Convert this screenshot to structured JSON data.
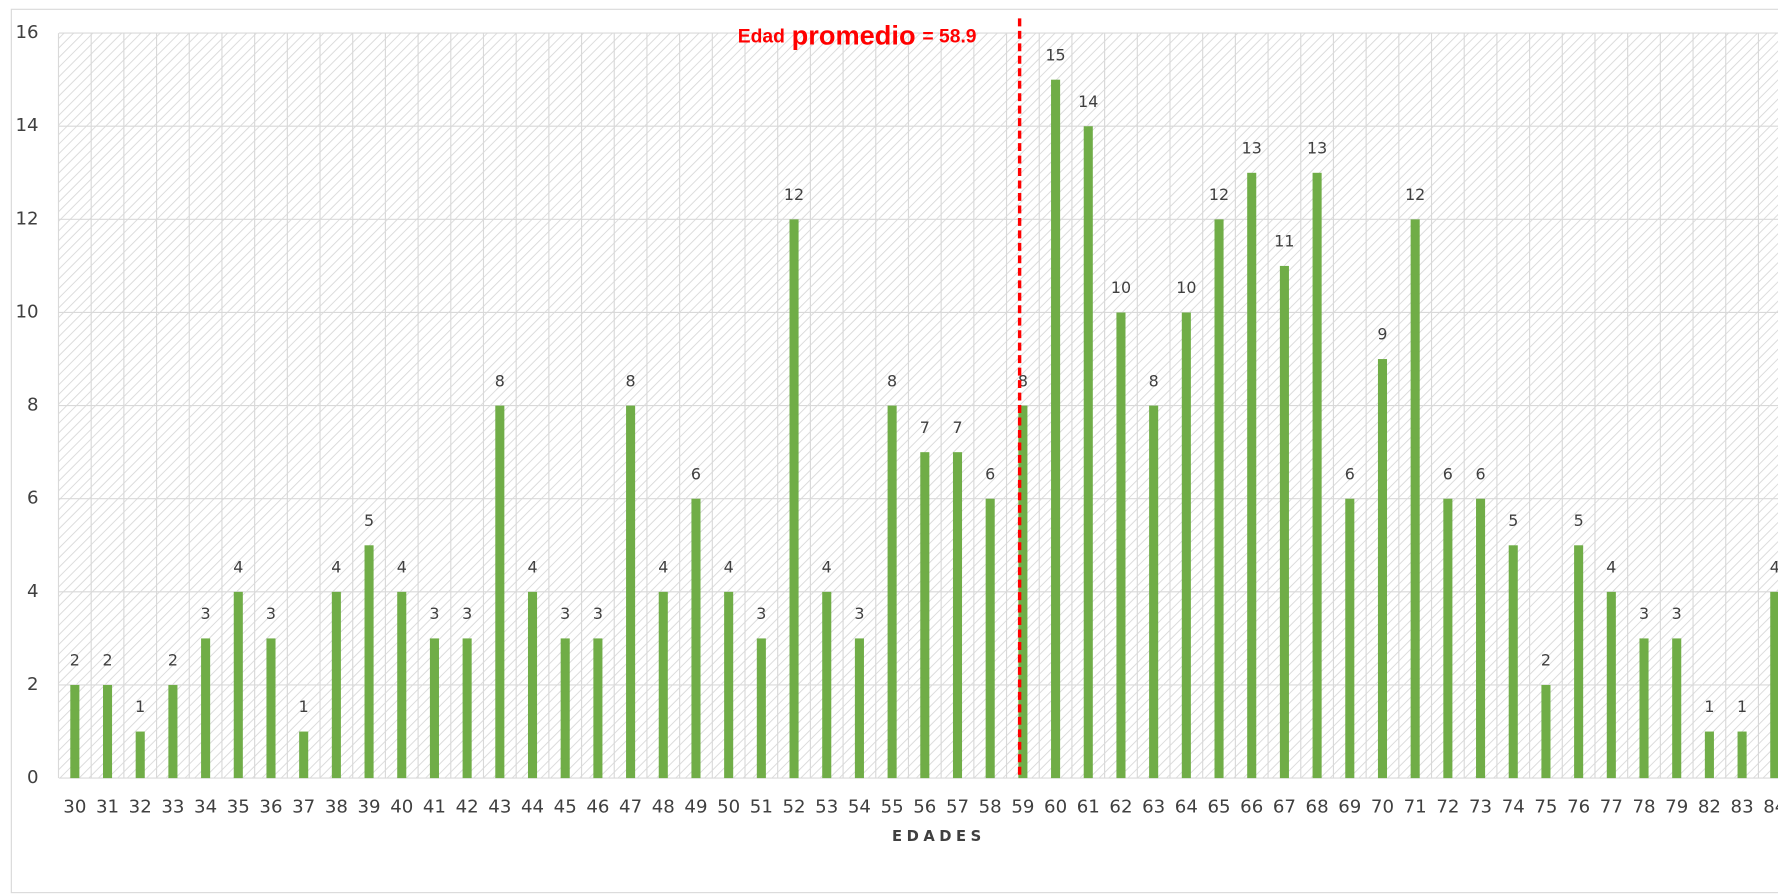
{
  "chart_data": {
    "type": "bar",
    "x_label": "EDADES",
    "categories": [
      "30",
      "31",
      "32",
      "33",
      "34",
      "35",
      "36",
      "37",
      "38",
      "39",
      "40",
      "41",
      "42",
      "43",
      "44",
      "45",
      "46",
      "47",
      "48",
      "49",
      "50",
      "51",
      "52",
      "53",
      "54",
      "55",
      "56",
      "57",
      "58",
      "59",
      "60",
      "61",
      "62",
      "63",
      "64",
      "65",
      "66",
      "67",
      "68",
      "69",
      "70",
      "71",
      "72",
      "73",
      "74",
      "75",
      "76",
      "77",
      "78",
      "79",
      "82",
      "83",
      "84"
    ],
    "values": [
      2,
      2,
      1,
      2,
      3,
      4,
      3,
      1,
      4,
      5,
      4,
      3,
      3,
      8,
      4,
      3,
      3,
      8,
      4,
      6,
      4,
      3,
      12,
      4,
      3,
      8,
      7,
      7,
      6,
      8,
      15,
      14,
      10,
      8,
      10,
      12,
      13,
      11,
      13,
      6,
      9,
      12,
      6,
      6,
      5,
      2,
      5,
      4,
      3,
      3,
      1,
      1,
      4
    ],
    "color": "#70ad47",
    "ylim": [
      0,
      16
    ],
    "yticks": [
      0,
      2,
      4,
      6,
      8,
      10,
      12,
      14,
      16
    ],
    "grid": true,
    "mean_line": {
      "value": 58.9,
      "color": "#ff0000",
      "label_prefix": "Edad",
      "label_emphasis": "promedio",
      "label_suffix": "= 58.9"
    }
  }
}
